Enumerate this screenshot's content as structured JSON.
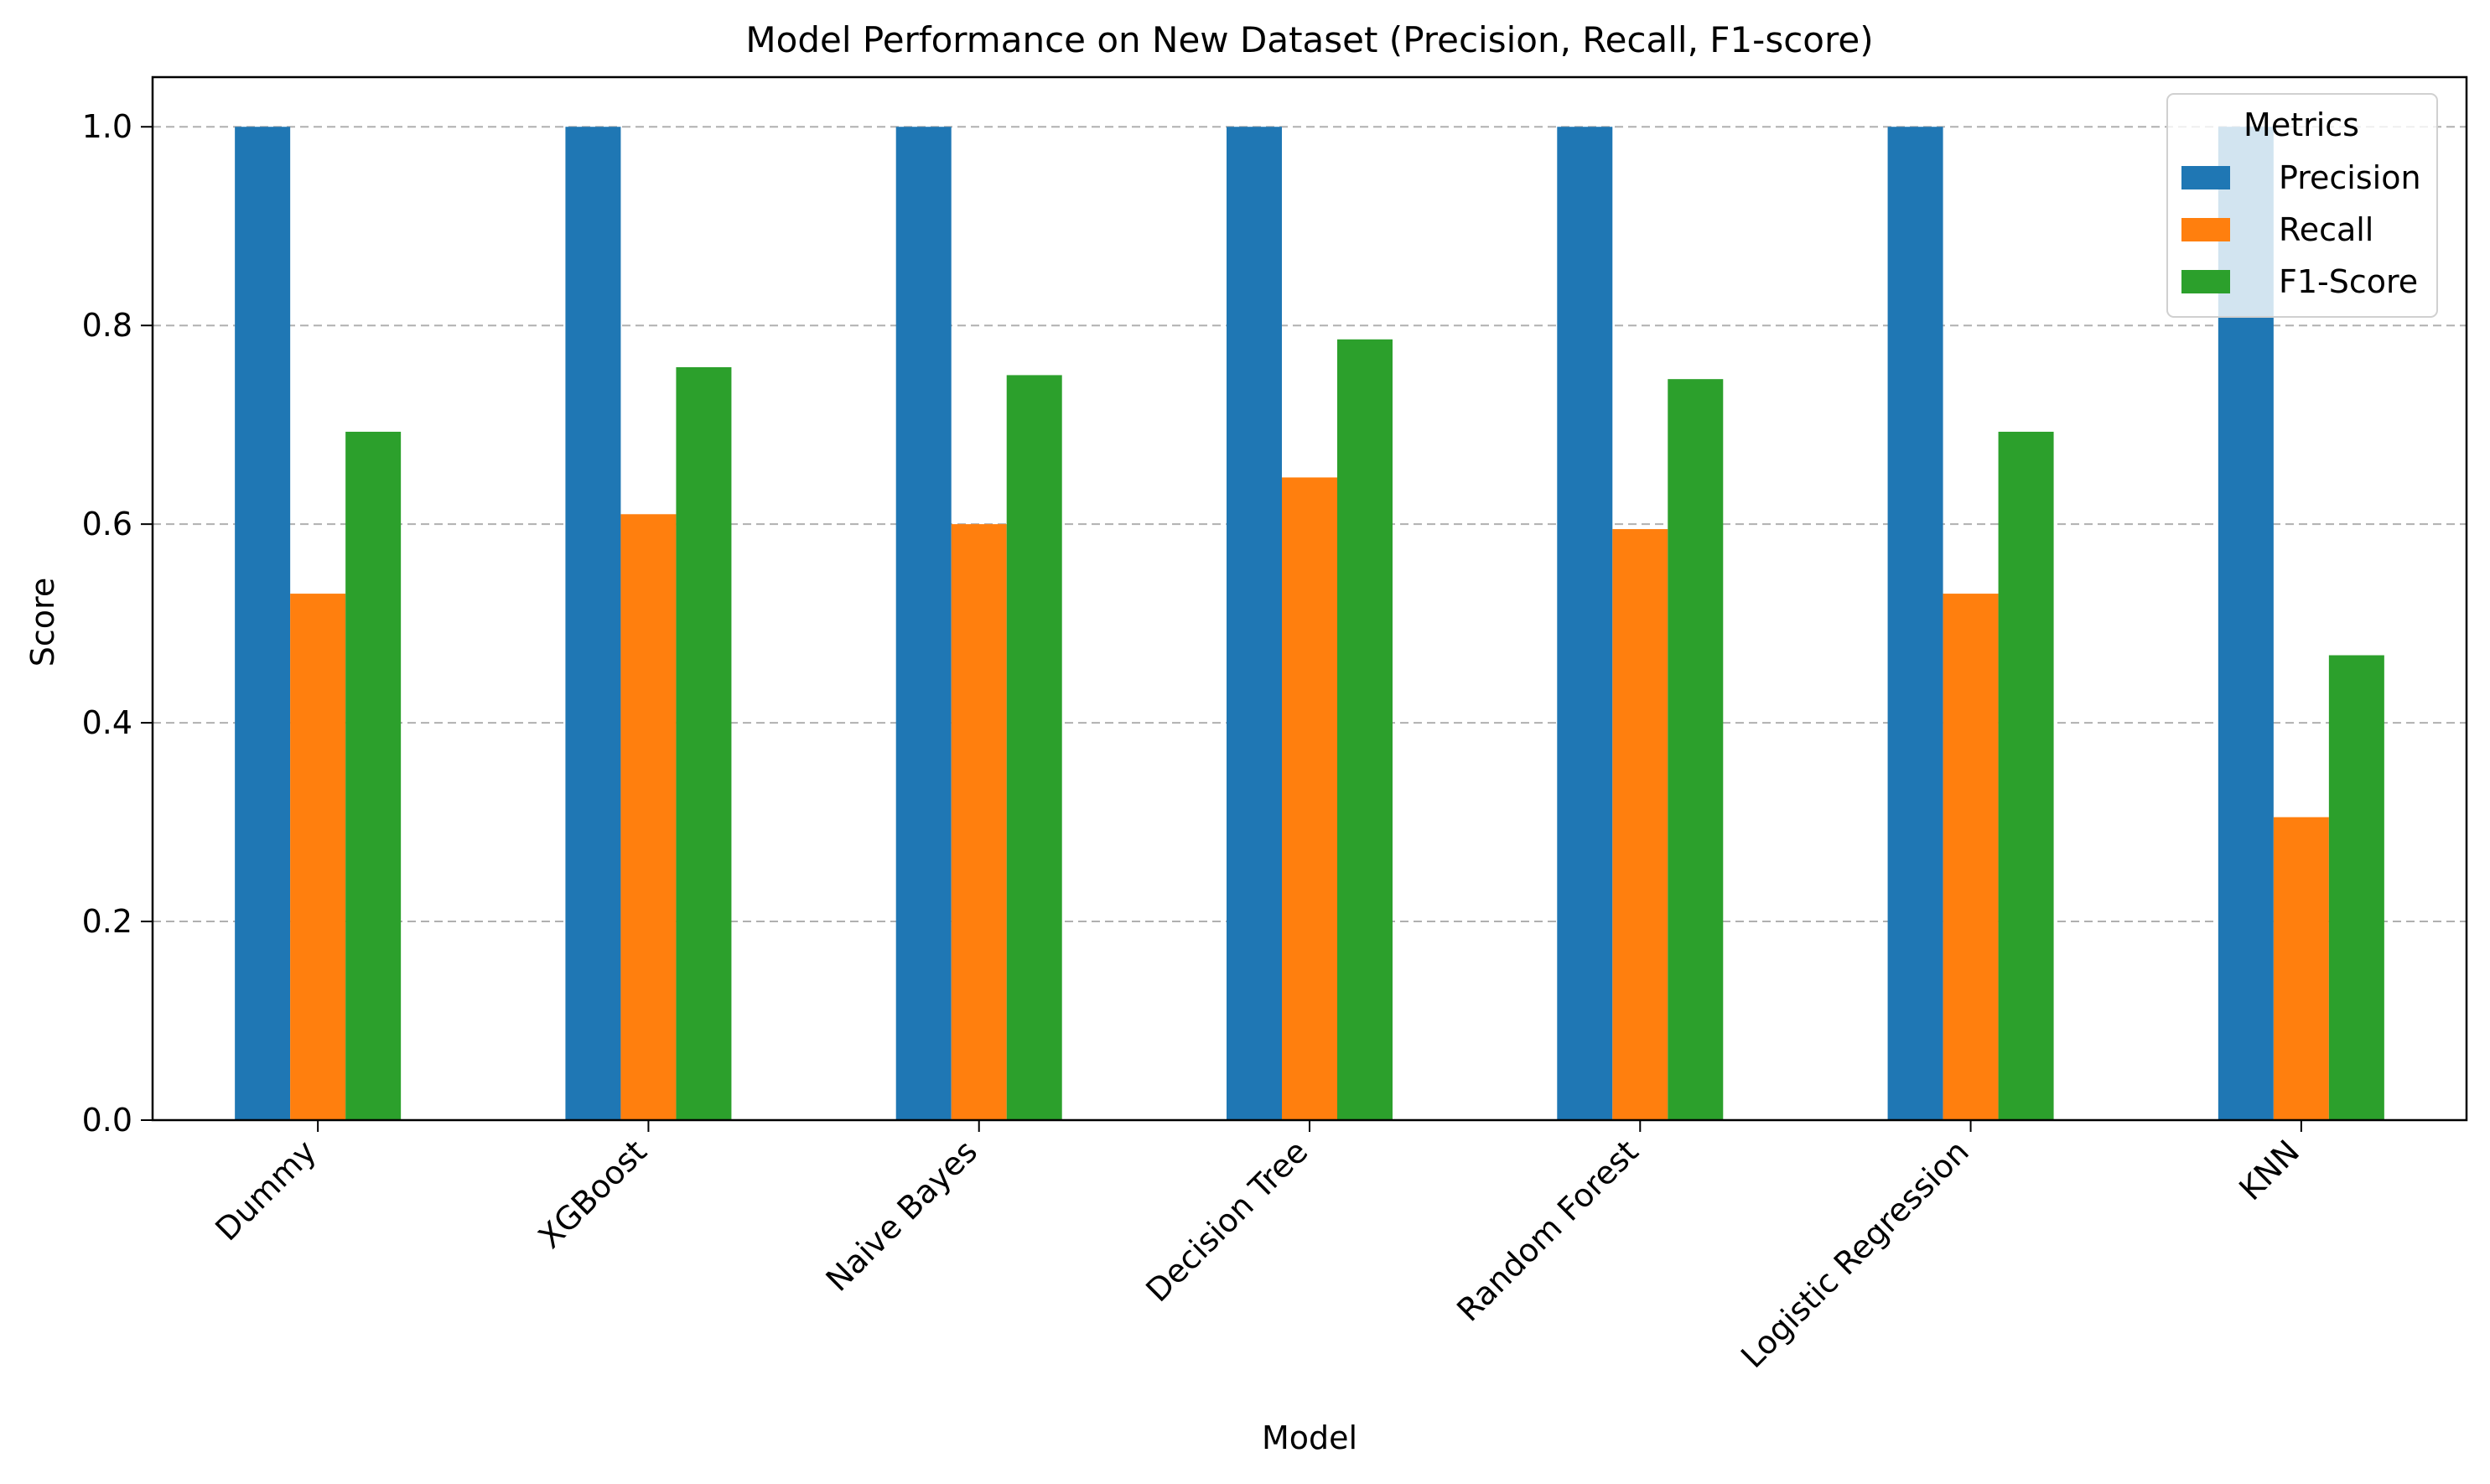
{
  "chart_data": {
    "type": "bar",
    "title": "Model Performance on New Dataset (Precision, Recall, F1-score)",
    "xlabel": "Model",
    "ylabel": "Score",
    "ylim": [
      0,
      1.05
    ],
    "yticks": [
      0.0,
      0.2,
      0.4,
      0.6,
      0.8,
      1.0
    ],
    "ytick_labels": [
      "0.0",
      "0.2",
      "0.4",
      "0.6",
      "0.8",
      "1.0"
    ],
    "grid": "y-dashed",
    "categories": [
      "Dummy",
      "XGBoost",
      "Naive Bayes",
      "Decision Tree",
      "Random Forest",
      "Logistic Regression",
      "KNN"
    ],
    "legend": {
      "title": "Metrics",
      "placement": "top-right"
    },
    "series": [
      {
        "name": "Precision",
        "color": "#1f77b4",
        "values": [
          1.0,
          1.0,
          1.0,
          1.0,
          1.0,
          1.0,
          1.0
        ]
      },
      {
        "name": "Recall",
        "color": "#ff7f0e",
        "values": [
          0.53,
          0.61,
          0.6,
          0.647,
          0.595,
          0.53,
          0.305
        ]
      },
      {
        "name": "F1-Score",
        "color": "#2ca02c",
        "values": [
          0.693,
          0.758,
          0.75,
          0.786,
          0.746,
          0.693,
          0.468
        ]
      }
    ]
  }
}
